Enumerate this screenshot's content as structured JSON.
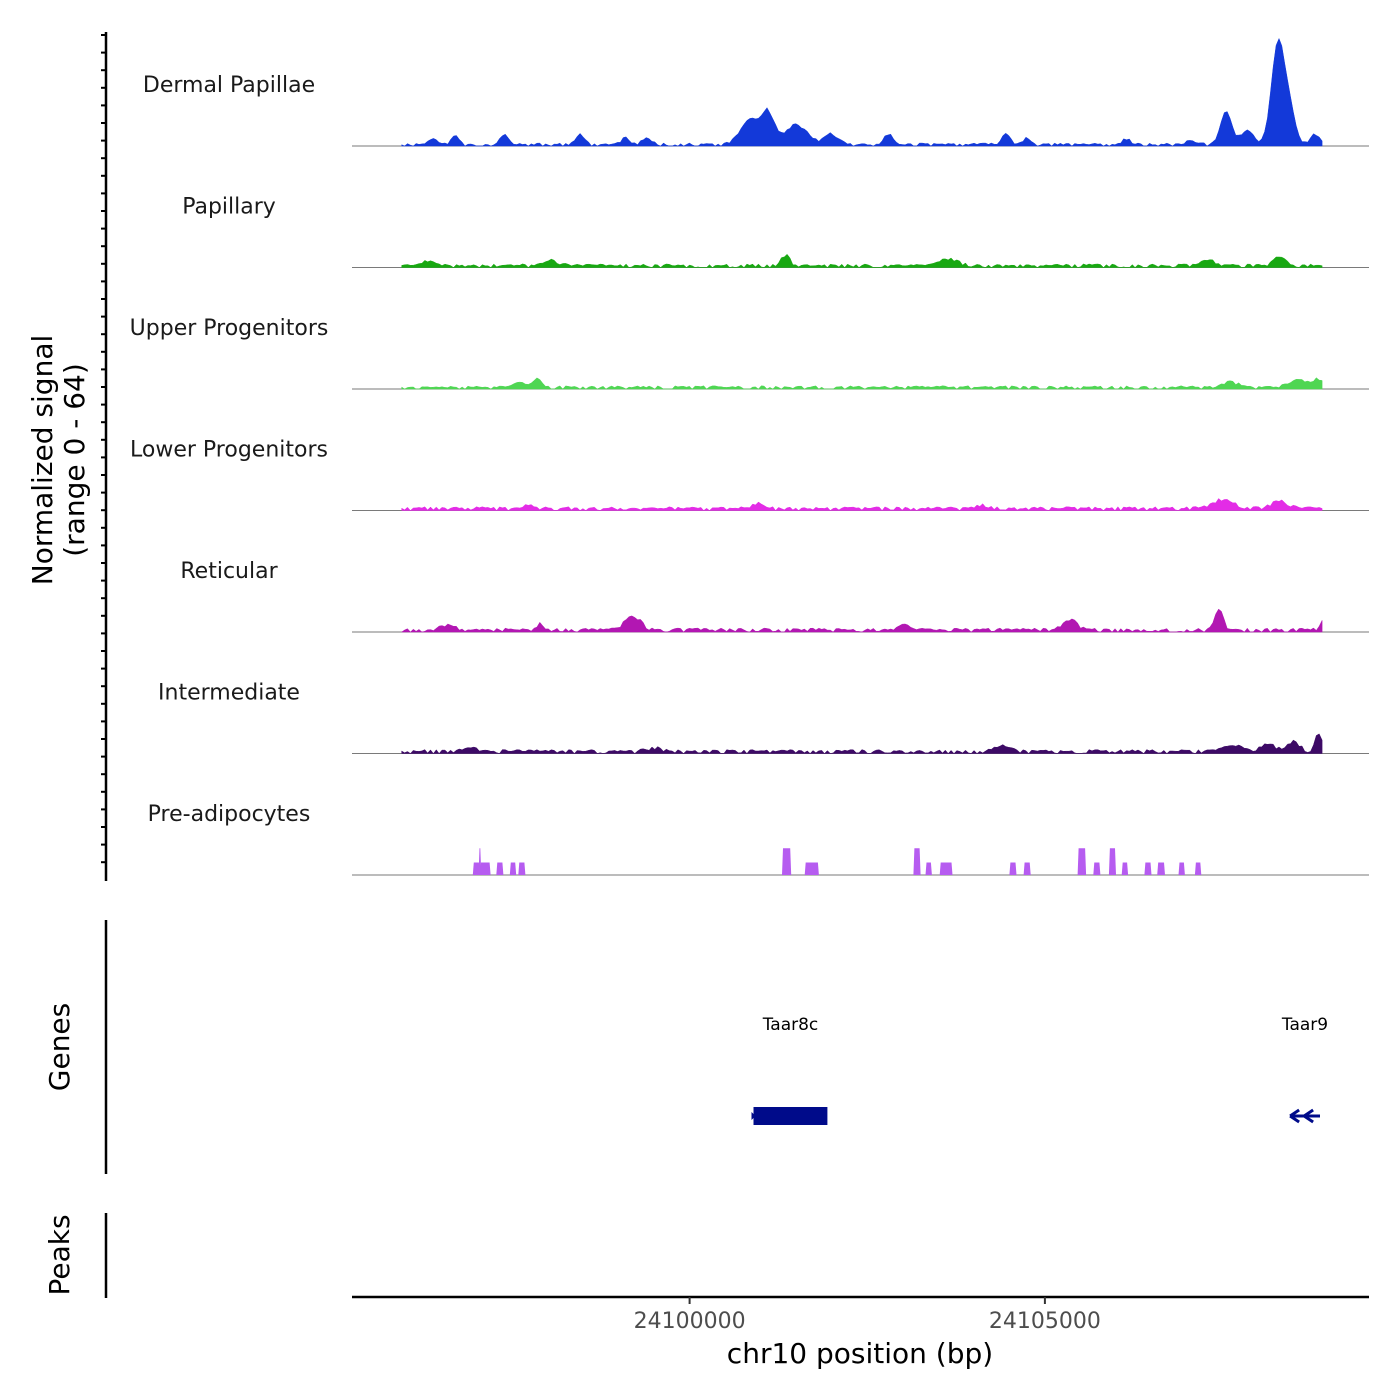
{
  "chart_data": {
    "type": "area",
    "y_axis_title_line1": "Normalized signal",
    "y_axis_title_line2": "(range 0 - 64)",
    "ylim": [
      0,
      64
    ],
    "xlabel": "chr10 position (bp)",
    "xlim": [
      24095250,
      24109560
    ],
    "x_ticks": [
      {
        "value": 24100000,
        "label": "24100000"
      },
      {
        "value": 24105000,
        "label": "24105000"
      }
    ],
    "signal_start": 24095950,
    "signal_end": 24108900,
    "tracks": [
      {
        "name": "Dermal Papillae",
        "color": "#1339d9",
        "kind": "smooth",
        "bins": 320,
        "baseline": 0.4,
        "noise_amp": 1.3,
        "gap_threshold": 0.45,
        "seed": 11,
        "peaks": [
          {
            "pos": 24101100,
            "height": 17,
            "width": 90
          },
          {
            "pos": 24100850,
            "height": 14,
            "width": 130
          },
          {
            "pos": 24101500,
            "height": 11,
            "width": 160
          },
          {
            "pos": 24102000,
            "height": 6,
            "width": 90
          },
          {
            "pos": 24107550,
            "height": 18,
            "width": 80
          },
          {
            "pos": 24107850,
            "height": 8,
            "width": 90
          },
          {
            "pos": 24108280,
            "height": 58,
            "width": 90
          },
          {
            "pos": 24108450,
            "height": 18,
            "width": 80
          },
          {
            "pos": 24096400,
            "height": 4,
            "width": 60
          },
          {
            "pos": 24096700,
            "height": 6,
            "width": 50
          },
          {
            "pos": 24097400,
            "height": 6,
            "width": 60
          },
          {
            "pos": 24098450,
            "height": 6,
            "width": 60
          },
          {
            "pos": 24099100,
            "height": 4,
            "width": 60
          },
          {
            "pos": 24099400,
            "height": 4,
            "width": 60
          },
          {
            "pos": 24102800,
            "height": 6,
            "width": 60
          },
          {
            "pos": 24104450,
            "height": 7,
            "width": 60
          },
          {
            "pos": 24104750,
            "height": 4,
            "width": 60
          },
          {
            "pos": 24106150,
            "height": 3,
            "width": 60
          },
          {
            "pos": 24107050,
            "height": 3,
            "width": 60
          },
          {
            "pos": 24108800,
            "height": 6,
            "width": 60
          }
        ]
      },
      {
        "name": "Papillary",
        "color": "#18a812",
        "kind": "smooth",
        "bins": 320,
        "baseline": 0.9,
        "noise_amp": 1.1,
        "gap_threshold": 0.3,
        "seed": 23,
        "peaks": [
          {
            "pos": 24101350,
            "height": 6,
            "width": 60
          },
          {
            "pos": 24103650,
            "height": 4,
            "width": 120
          },
          {
            "pos": 24107300,
            "height": 3,
            "width": 100
          },
          {
            "pos": 24108300,
            "height": 5,
            "width": 80
          },
          {
            "pos": 24098050,
            "height": 3,
            "width": 100
          },
          {
            "pos": 24096300,
            "height": 3,
            "width": 80
          }
        ]
      },
      {
        "name": "Upper Progenitors",
        "color": "#4fd653",
        "kind": "smooth",
        "bins": 320,
        "baseline": 0.8,
        "noise_amp": 1.0,
        "gap_threshold": 0.35,
        "seed": 37,
        "peaks": [
          {
            "pos": 24097850,
            "height": 6,
            "width": 50
          },
          {
            "pos": 24097600,
            "height": 3,
            "width": 80
          },
          {
            "pos": 24107600,
            "height": 3,
            "width": 120
          },
          {
            "pos": 24108600,
            "height": 4,
            "width": 150
          },
          {
            "pos": 24108850,
            "height": 4,
            "width": 50
          }
        ]
      },
      {
        "name": "Lower Progenitors",
        "color": "#e32ce6",
        "kind": "smooth",
        "bins": 320,
        "baseline": 1.0,
        "noise_amp": 1.1,
        "gap_threshold": 0.3,
        "seed": 41,
        "peaks": [
          {
            "pos": 24100950,
            "height": 3,
            "width": 80
          },
          {
            "pos": 24107500,
            "height": 5,
            "width": 150
          },
          {
            "pos": 24108300,
            "height": 4,
            "width": 120
          },
          {
            "pos": 24104100,
            "height": 2,
            "width": 100
          },
          {
            "pos": 24097700,
            "height": 2,
            "width": 80
          }
        ]
      },
      {
        "name": "Reticular",
        "color": "#b217b2",
        "kind": "smooth",
        "bins": 320,
        "baseline": 1.0,
        "noise_amp": 1.2,
        "gap_threshold": 0.3,
        "seed": 53,
        "peaks": [
          {
            "pos": 24099200,
            "height": 8,
            "width": 110
          },
          {
            "pos": 24107450,
            "height": 11,
            "width": 60
          },
          {
            "pos": 24105350,
            "height": 6,
            "width": 100
          },
          {
            "pos": 24097900,
            "height": 4,
            "width": 50
          },
          {
            "pos": 24103000,
            "height": 3,
            "width": 80
          },
          {
            "pos": 24108900,
            "height": 5,
            "width": 40
          },
          {
            "pos": 24096600,
            "height": 3,
            "width": 100
          }
        ]
      },
      {
        "name": "Intermediate",
        "color": "#3d0a66",
        "kind": "smooth",
        "bins": 320,
        "baseline": 1.1,
        "noise_amp": 1.1,
        "gap_threshold": 0.3,
        "seed": 67,
        "peaks": [
          {
            "pos": 24108850,
            "height": 10,
            "width": 50
          },
          {
            "pos": 24108500,
            "height": 6,
            "width": 80
          },
          {
            "pos": 24108150,
            "height": 4,
            "width": 100
          },
          {
            "pos": 24107650,
            "height": 3,
            "width": 150
          },
          {
            "pos": 24104400,
            "height": 3,
            "width": 100
          },
          {
            "pos": 24096900,
            "height": 3,
            "width": 100
          },
          {
            "pos": 24099500,
            "height": 2,
            "width": 100
          }
        ]
      },
      {
        "name": "Pre-adipocytes",
        "color": "#b65cf0",
        "kind": "sparse",
        "blocks": [
          {
            "start": 24096950,
            "end": 24097050,
            "height": 7
          },
          {
            "start": 24097030,
            "end": 24097070,
            "height": 15
          },
          {
            "start": 24097050,
            "end": 24097200,
            "height": 7
          },
          {
            "start": 24097280,
            "end": 24097380,
            "height": 7
          },
          {
            "start": 24097470,
            "end": 24097560,
            "height": 7
          },
          {
            "start": 24097590,
            "end": 24097690,
            "height": 7
          },
          {
            "start": 24101300,
            "end": 24101430,
            "height": 15
          },
          {
            "start": 24101620,
            "end": 24101820,
            "height": 7
          },
          {
            "start": 24103150,
            "end": 24103250,
            "height": 15
          },
          {
            "start": 24103320,
            "end": 24103410,
            "height": 7
          },
          {
            "start": 24103520,
            "end": 24103700,
            "height": 7
          },
          {
            "start": 24104500,
            "end": 24104600,
            "height": 7
          },
          {
            "start": 24104700,
            "end": 24104800,
            "height": 7
          },
          {
            "start": 24105460,
            "end": 24105580,
            "height": 15
          },
          {
            "start": 24105680,
            "end": 24105780,
            "height": 7
          },
          {
            "start": 24105900,
            "end": 24106000,
            "height": 15
          },
          {
            "start": 24106080,
            "end": 24106170,
            "height": 7
          },
          {
            "start": 24106400,
            "end": 24106500,
            "height": 7
          },
          {
            "start": 24106580,
            "end": 24106690,
            "height": 7
          },
          {
            "start": 24106880,
            "end": 24106970,
            "height": 7
          },
          {
            "start": 24107110,
            "end": 24107200,
            "height": 7
          }
        ]
      }
    ],
    "genes_label": "Genes",
    "peaks_label": "Peaks",
    "genes": [
      {
        "name": "Taar8c",
        "start": 24100900,
        "end": 24101940,
        "strand": "+",
        "color": "#000b8a"
      },
      {
        "name": "Taar9",
        "start": 24108450,
        "end": 24108870,
        "strand": "-",
        "color": "#000b8a"
      }
    ]
  }
}
